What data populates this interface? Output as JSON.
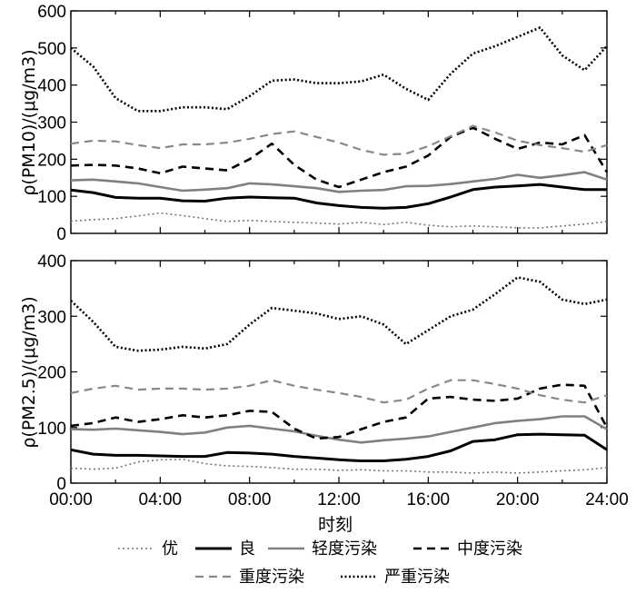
{
  "chart_data": [
    {
      "type": "line",
      "ylabel": "ρ(PM10)/(μg/m3)",
      "ylim": [
        0,
        600
      ],
      "yticks": [
        "0",
        "100",
        "200",
        "300",
        "400",
        "500",
        "600"
      ],
      "xlim": [
        0,
        24
      ],
      "x": [
        0,
        1,
        2,
        3,
        4,
        5,
        6,
        7,
        8,
        9,
        10,
        11,
        12,
        13,
        14,
        15,
        16,
        17,
        18,
        19,
        20,
        21,
        22,
        23,
        24
      ],
      "series": [
        {
          "name": "优",
          "style": "dotted-thin",
          "values": [
            33,
            37,
            40,
            47,
            55,
            48,
            40,
            32,
            35,
            32,
            30,
            28,
            25,
            30,
            24,
            30,
            22,
            18,
            20,
            18,
            15,
            15,
            20,
            25,
            32
          ]
        },
        {
          "name": "良",
          "style": "solid-thick",
          "values": [
            117,
            110,
            97,
            95,
            95,
            88,
            87,
            95,
            98,
            96,
            95,
            82,
            75,
            70,
            68,
            70,
            80,
            98,
            118,
            125,
            128,
            132,
            125,
            118,
            118
          ]
        },
        {
          "name": "轻度污染",
          "style": "solid-gray",
          "values": [
            143,
            145,
            140,
            135,
            125,
            115,
            118,
            122,
            135,
            132,
            127,
            122,
            112,
            115,
            117,
            127,
            128,
            133,
            140,
            147,
            158,
            150,
            157,
            165,
            145
          ]
        },
        {
          "name": "中度污染",
          "style": "dashed-black",
          "values": [
            183,
            185,
            183,
            175,
            162,
            180,
            175,
            170,
            200,
            242,
            185,
            145,
            125,
            145,
            165,
            180,
            210,
            260,
            285,
            255,
            228,
            245,
            240,
            265,
            165
          ]
        },
        {
          "name": "重度污染",
          "style": "dashed-gray",
          "values": [
            242,
            250,
            248,
            238,
            230,
            240,
            240,
            245,
            255,
            268,
            275,
            260,
            245,
            225,
            212,
            215,
            235,
            262,
            290,
            272,
            250,
            238,
            230,
            220,
            238
          ]
        },
        {
          "name": "严重污染",
          "style": "dotted-thick",
          "values": [
            500,
            450,
            365,
            330,
            330,
            340,
            340,
            335,
            370,
            412,
            415,
            405,
            405,
            410,
            428,
            390,
            360,
            430,
            485,
            505,
            530,
            555,
            480,
            440,
            505
          ]
        }
      ]
    },
    {
      "type": "line",
      "ylabel": "ρ(PM2.5)/(μg/m3)",
      "ylim": [
        0,
        400
      ],
      "yticks": [
        "0",
        "100",
        "200",
        "300",
        "400"
      ],
      "xlim": [
        0,
        24
      ],
      "x": [
        0,
        1,
        2,
        3,
        4,
        5,
        6,
        7,
        8,
        9,
        10,
        11,
        12,
        13,
        14,
        15,
        16,
        17,
        18,
        19,
        20,
        21,
        22,
        23,
        24
      ],
      "series": [
        {
          "name": "优",
          "style": "dotted-thin",
          "values": [
            27,
            25,
            27,
            38,
            42,
            43,
            35,
            31,
            30,
            28,
            25,
            25,
            23,
            24,
            22,
            22,
            20,
            20,
            18,
            20,
            18,
            20,
            22,
            24,
            28
          ]
        },
        {
          "name": "良",
          "style": "solid-thick",
          "values": [
            60,
            52,
            50,
            50,
            49,
            48,
            48,
            55,
            54,
            52,
            48,
            45,
            42,
            40,
            40,
            43,
            48,
            58,
            75,
            78,
            87,
            88,
            87,
            86,
            60
          ]
        },
        {
          "name": "轻度污染",
          "style": "solid-gray",
          "values": [
            97,
            96,
            98,
            95,
            92,
            88,
            91,
            100,
            103,
            98,
            93,
            85,
            78,
            73,
            77,
            80,
            84,
            92,
            100,
            108,
            112,
            115,
            120,
            120,
            97
          ]
        },
        {
          "name": "中度污染",
          "style": "dashed-black",
          "values": [
            103,
            108,
            118,
            110,
            115,
            122,
            118,
            122,
            130,
            128,
            98,
            80,
            83,
            97,
            110,
            118,
            152,
            155,
            150,
            148,
            152,
            170,
            177,
            175,
            100
          ]
        },
        {
          "name": "重度污染",
          "style": "dashed-gray",
          "values": [
            162,
            170,
            175,
            168,
            170,
            170,
            168,
            170,
            175,
            185,
            175,
            168,
            162,
            155,
            145,
            150,
            170,
            185,
            185,
            178,
            170,
            158,
            150,
            145,
            158
          ]
        },
        {
          "name": "严重污染",
          "style": "dotted-thick",
          "values": [
            328,
            290,
            245,
            238,
            240,
            245,
            242,
            250,
            285,
            315,
            310,
            305,
            295,
            300,
            285,
            250,
            275,
            300,
            312,
            340,
            370,
            362,
            330,
            322,
            330
          ]
        }
      ]
    }
  ],
  "xaxis": {
    "label": "时刻",
    "ticks": [
      "00:00",
      "04:00",
      "08:00",
      "12:00",
      "16:00",
      "20:00",
      "24:00"
    ]
  },
  "legend": {
    "placement": "bottom",
    "items": [
      "优",
      "良",
      "轻度污染",
      "中度污染",
      "重度污染",
      "严重污染"
    ]
  }
}
